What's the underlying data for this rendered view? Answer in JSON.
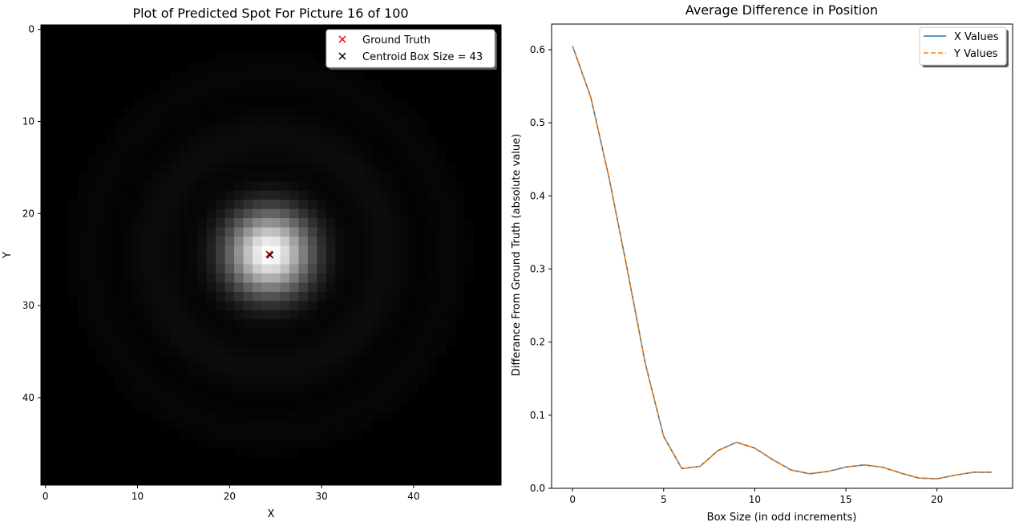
{
  "chart_data": [
    {
      "type": "heatmap",
      "title": "Plot of Predicted Spot For Picture 16 of 100",
      "xlabel": "X",
      "ylabel": "Y",
      "xlim": [
        -0.5,
        49.5
      ],
      "ylim": [
        49.5,
        -0.5
      ],
      "xticks": [
        0,
        10,
        20,
        30,
        40
      ],
      "yticks": [
        0,
        10,
        20,
        30,
        40
      ],
      "colormap": "gray",
      "image": {
        "size": 50,
        "center_x": 24.3,
        "center_y": 24.3,
        "description_values": "radially symmetric Airy-like spot, peak intensity at center, faint outer rings"
      },
      "markers": [
        {
          "name": "Ground Truth",
          "x": 24.3,
          "y": 24.4,
          "color": "#ff0000",
          "marker": "x"
        },
        {
          "name": "Centroid Box Size = 43",
          "x": 24.4,
          "y": 24.5,
          "color": "#000000",
          "marker": "x"
        }
      ],
      "legend_position": "top-right"
    },
    {
      "type": "line",
      "title": "Average Difference in Position",
      "xlabel": "Box Size (in odd increments)",
      "ylabel": "Differance From Ground Truth (absolute value)",
      "xlim": [
        -1.15,
        24.15
      ],
      "ylim": [
        0,
        0.635
      ],
      "xticks": [
        0,
        5,
        10,
        15,
        20
      ],
      "yticks": [
        0.0,
        0.1,
        0.2,
        0.3,
        0.4,
        0.5,
        0.6
      ],
      "x": [
        0,
        1,
        2,
        3,
        4,
        5,
        6,
        7,
        8,
        9,
        10,
        11,
        12,
        13,
        14,
        15,
        16,
        17,
        18,
        19,
        20,
        21,
        22,
        23
      ],
      "series": [
        {
          "name": "X Values",
          "color": "#1f77b4",
          "style": "solid",
          "values": [
            0.605,
            0.535,
            0.425,
            0.3,
            0.17,
            0.071,
            0.027,
            0.03,
            0.052,
            0.063,
            0.055,
            0.039,
            0.025,
            0.02,
            0.023,
            0.029,
            0.032,
            0.029,
            0.021,
            0.014,
            0.013,
            0.018,
            0.022,
            0.022
          ]
        },
        {
          "name": "Y Values",
          "color": "#ff7f0e",
          "style": "dashed",
          "values": [
            0.605,
            0.535,
            0.425,
            0.3,
            0.17,
            0.071,
            0.027,
            0.03,
            0.052,
            0.063,
            0.055,
            0.039,
            0.025,
            0.02,
            0.023,
            0.029,
            0.032,
            0.029,
            0.021,
            0.014,
            0.013,
            0.018,
            0.022,
            0.022
          ]
        }
      ],
      "legend_position": "top-right",
      "grid": false
    }
  ]
}
